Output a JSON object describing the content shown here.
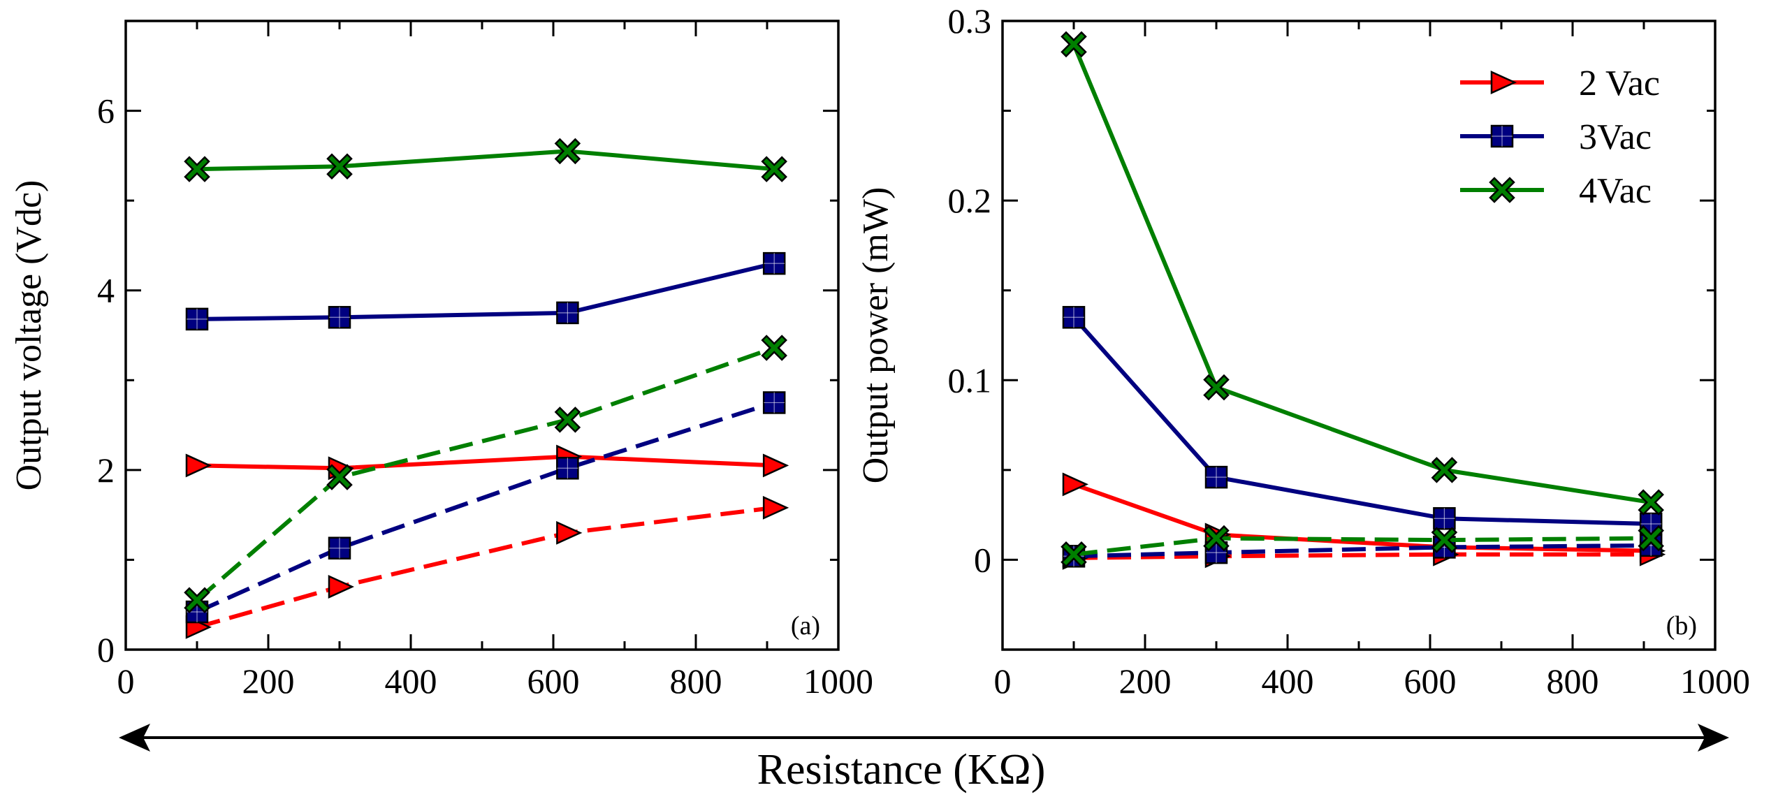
{
  "figure": {
    "shared_xlabel": "Resistance (KΩ)"
  },
  "chart_data": [
    {
      "type": "line",
      "panel_label": "(a)",
      "title": "",
      "xlabel": "",
      "ylabel": "Output voltage (Vdc)",
      "xlim": [
        0,
        1000
      ],
      "ylim": [
        0,
        7
      ],
      "xticks": [
        0,
        200,
        400,
        600,
        800,
        1000
      ],
      "yticks": [
        0,
        2,
        4,
        6
      ],
      "x": [
        100,
        300,
        620,
        910
      ],
      "series": [
        {
          "name": "2 Vac",
          "style": "solid",
          "marker": "triangle-right",
          "color": "#ff0000",
          "values": [
            2.05,
            2.02,
            2.15,
            2.05
          ]
        },
        {
          "name": "2 Vac",
          "style": "dashed",
          "marker": "triangle-right",
          "color": "#ff0000",
          "values": [
            0.25,
            0.7,
            1.3,
            1.58
          ]
        },
        {
          "name": "3Vac",
          "style": "solid",
          "marker": "square",
          "color": "#000080",
          "values": [
            3.68,
            3.7,
            3.75,
            4.3
          ]
        },
        {
          "name": "3Vac",
          "style": "dashed",
          "marker": "square",
          "color": "#000080",
          "values": [
            0.42,
            1.13,
            2.02,
            2.75
          ]
        },
        {
          "name": "4Vac",
          "style": "solid",
          "marker": "x",
          "color": "#007f00",
          "values": [
            5.35,
            5.38,
            5.55,
            5.35
          ]
        },
        {
          "name": "4Vac",
          "style": "dashed",
          "marker": "x",
          "color": "#007f00",
          "values": [
            0.55,
            1.92,
            2.56,
            3.36
          ]
        }
      ]
    },
    {
      "type": "line",
      "panel_label": "(b)",
      "title": "",
      "xlabel": "",
      "ylabel": "Output power (mW)",
      "xlim": [
        0,
        1000
      ],
      "ylim": [
        -0.05,
        0.3
      ],
      "xticks": [
        0,
        200,
        400,
        600,
        800,
        1000
      ],
      "yticks": [
        0,
        0.1,
        0.2,
        0.3
      ],
      "ytick_labels": [
        "0",
        "0.1",
        "0.2",
        "0.3"
      ],
      "legend": {
        "position": "top-right",
        "entries": [
          {
            "label": "2 Vac",
            "color": "#ff0000",
            "marker": "triangle-right"
          },
          {
            "label": "3Vac",
            "color": "#000080",
            "marker": "square"
          },
          {
            "label": "4Vac",
            "color": "#007f00",
            "marker": "x"
          }
        ]
      },
      "x": [
        100,
        300,
        620,
        910
      ],
      "series": [
        {
          "name": "2 Vac",
          "style": "solid",
          "marker": "triangle-right",
          "color": "#ff0000",
          "values": [
            0.042,
            0.014,
            0.007,
            0.005
          ]
        },
        {
          "name": "2 Vac",
          "style": "dashed",
          "marker": "triangle-right",
          "color": "#ff0000",
          "values": [
            0.001,
            0.002,
            0.003,
            0.003
          ]
        },
        {
          "name": "3Vac",
          "style": "solid",
          "marker": "square",
          "color": "#000080",
          "values": [
            0.135,
            0.046,
            0.023,
            0.02
          ]
        },
        {
          "name": "3Vac",
          "style": "dashed",
          "marker": "square",
          "color": "#000080",
          "values": [
            0.002,
            0.004,
            0.007,
            0.008
          ]
        },
        {
          "name": "4Vac",
          "style": "solid",
          "marker": "x",
          "color": "#007f00",
          "values": [
            0.287,
            0.096,
            0.05,
            0.032
          ]
        },
        {
          "name": "4Vac",
          "style": "dashed",
          "marker": "x",
          "color": "#007f00",
          "values": [
            0.003,
            0.012,
            0.011,
            0.012
          ]
        }
      ]
    }
  ]
}
